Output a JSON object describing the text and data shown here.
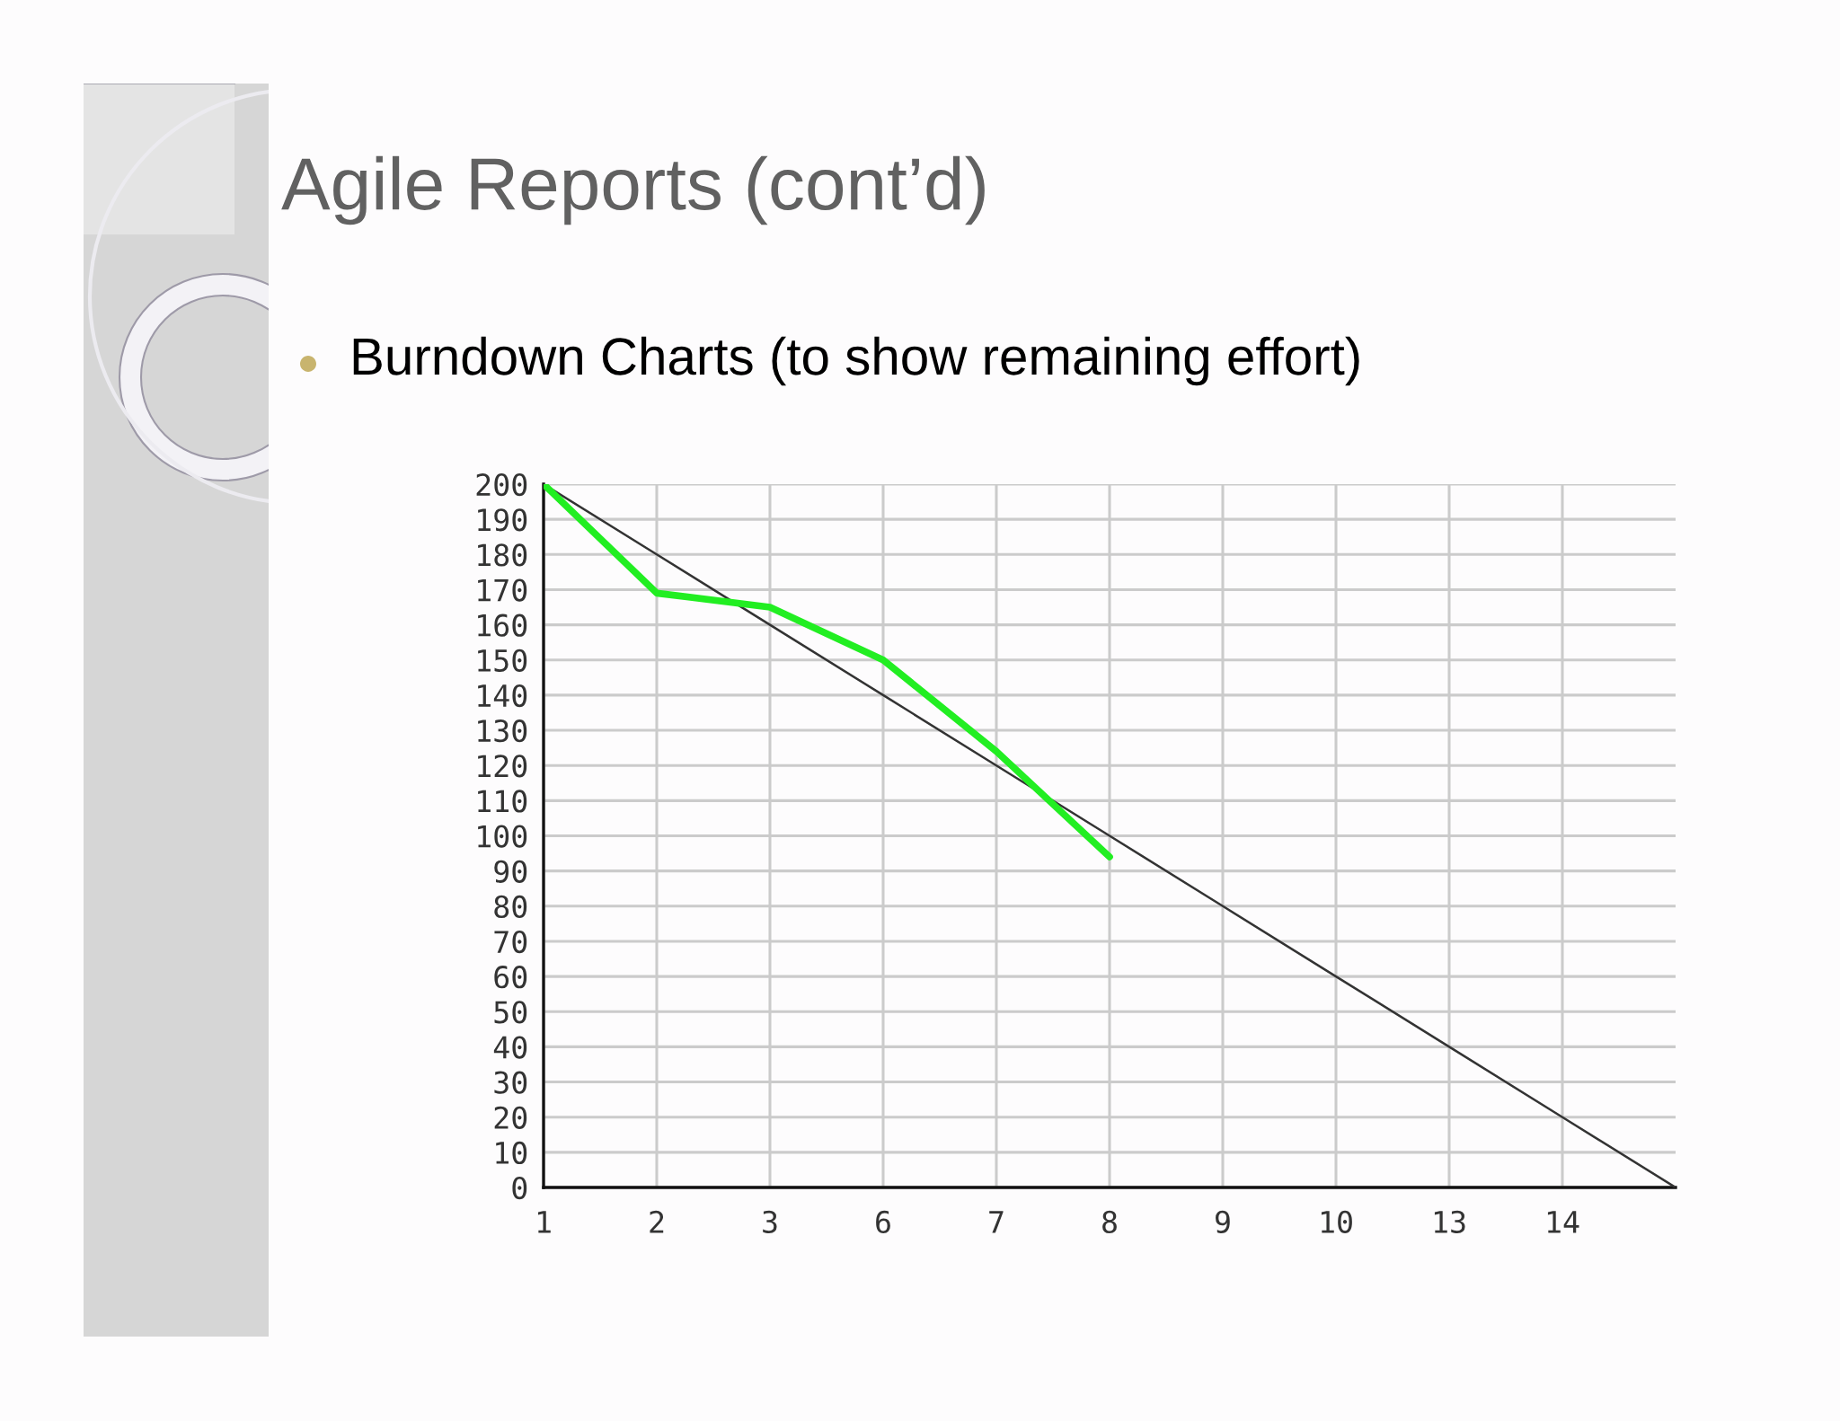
{
  "chart_data": {
    "type": "line",
    "title": "Agile Reports (cont’d)",
    "subtitle": "Burndown Charts (to show remaining effort)",
    "categories": [
      "1",
      "2",
      "3",
      "6",
      "7",
      "8",
      "9",
      "10",
      "13",
      "14",
      null
    ],
    "ylim": [
      0,
      200
    ],
    "yticks": [
      0,
      10,
      20,
      30,
      40,
      50,
      60,
      70,
      80,
      90,
      100,
      110,
      120,
      130,
      140,
      150,
      160,
      170,
      180,
      190,
      200
    ],
    "grid": true,
    "line_style": "solid",
    "series": [
      {
        "color": "#333333",
        "values": [
          200,
          180,
          160,
          140,
          120,
          100,
          80,
          60,
          40,
          20,
          0
        ]
      },
      {
        "color": "#22ee22",
        "values": [
          200,
          169,
          165,
          150,
          124,
          94,
          null,
          null,
          null,
          null,
          null
        ]
      }
    ]
  }
}
